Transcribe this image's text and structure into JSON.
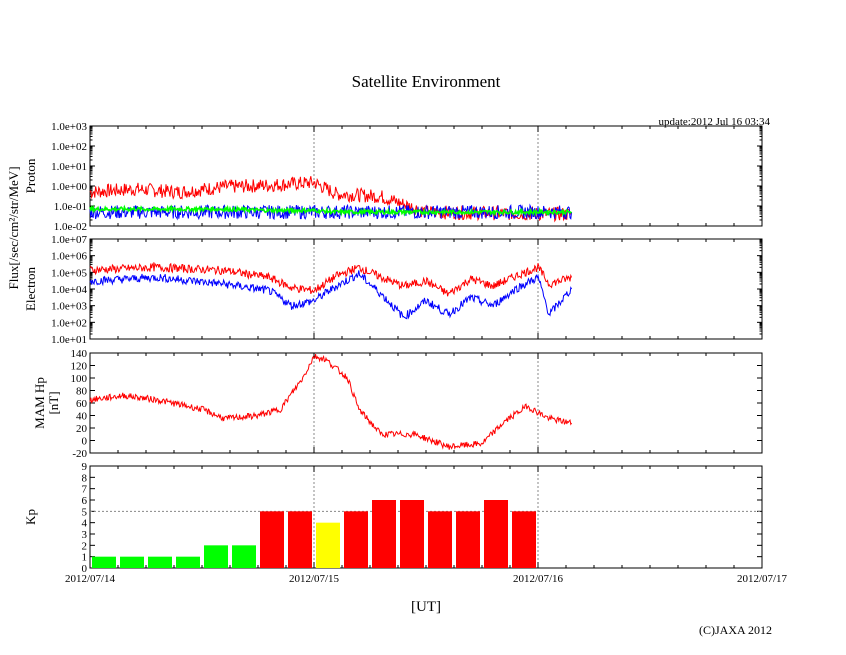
{
  "title": "Satellite Environment",
  "update": "update:2012 Jul 16 03:34",
  "copyright": "(C)JAXA 2012",
  "xlabel": "[UT]",
  "flux_label": "Flux[/sec/cm²/str/MeV]",
  "x_ticks": [
    "2012/07/14",
    "2012/07/15",
    "2012/07/16",
    "2012/07/17"
  ],
  "colors": {
    "red": "#ff0000",
    "blue": "#0000ff",
    "green": "#00ff00",
    "yellow": "#ffff00",
    "grid": "#888888"
  },
  "chart_data": [
    {
      "type": "line",
      "ylabel": "Proton",
      "yscale": "log",
      "ylim": [
        0.01,
        1000
      ],
      "y_ticks": [
        "1.0e-02",
        "1.0e-01",
        "1.0e+00",
        "1.0e+01",
        "1.0e+02",
        "1.0e+03"
      ],
      "x_days": [
        0,
        0.2,
        0.4,
        0.6,
        0.8,
        1.0,
        1.1,
        1.3,
        1.5,
        2.0,
        2.15
      ],
      "series": [
        {
          "color": "red",
          "values": [
            0.5,
            0.7,
            0.5,
            0.9,
            1.1,
            1.5,
            0.4,
            0.3,
            0.05,
            0.04,
            0.04
          ]
        },
        {
          "color": "blue",
          "values": [
            0.05,
            0.05,
            0.05,
            0.05,
            0.05,
            0.05,
            0.05,
            0.05,
            0.05,
            0.05,
            0.05
          ]
        },
        {
          "color": "green",
          "values": [
            0.07,
            0.07,
            0.07,
            0.07,
            0.06,
            0.06,
            0.05,
            0.05,
            0.05,
            0.05,
            0.05
          ]
        }
      ]
    },
    {
      "type": "line",
      "ylabel": "Electron",
      "yscale": "log",
      "ylim": [
        10,
        10000000
      ],
      "y_ticks": [
        "1.0e+01",
        "1.0e+02",
        "1.0e+03",
        "1.0e+04",
        "1.0e+05",
        "1.0e+06",
        "1.0e+07"
      ],
      "x_days": [
        0,
        0.3,
        0.6,
        0.8,
        0.9,
        1.0,
        1.1,
        1.2,
        1.3,
        1.4,
        1.5,
        1.6,
        1.7,
        1.8,
        1.9,
        2.0,
        2.05,
        2.15
      ],
      "series": [
        {
          "color": "red",
          "values": [
            140000,
            200000,
            130000,
            50000,
            12000,
            8000,
            60000,
            200000,
            50000,
            15000,
            30000,
            5000,
            40000,
            15000,
            60000,
            200000,
            20000,
            50000
          ]
        },
        {
          "color": "blue",
          "values": [
            30000,
            50000,
            20000,
            8000,
            1000,
            2000,
            15000,
            80000,
            5000,
            200,
            2000,
            300,
            3000,
            1000,
            10000,
            50000,
            300,
            10000
          ]
        }
      ]
    },
    {
      "type": "line",
      "ylabel": "MAM Hp",
      "ylabel2": "[nT]",
      "ylim": [
        -20,
        140
      ],
      "y_ticks": [
        "-20",
        "0",
        "20",
        "40",
        "60",
        "80",
        "100",
        "120",
        "140"
      ],
      "x_days": [
        0,
        0.15,
        0.3,
        0.5,
        0.6,
        0.75,
        0.85,
        0.95,
        1.0,
        1.05,
        1.15,
        1.2,
        1.3,
        1.45,
        1.6,
        1.75,
        1.85,
        1.95,
        2.05,
        2.15
      ],
      "series": [
        {
          "color": "red",
          "values": [
            65,
            72,
            65,
            50,
            35,
            40,
            50,
            100,
            135,
            130,
            100,
            50,
            10,
            10,
            -10,
            -5,
            30,
            55,
            35,
            28
          ]
        }
      ]
    },
    {
      "type": "bar",
      "ylabel": "Kp",
      "ylim": [
        0,
        9
      ],
      "y_ticks": [
        "0",
        "1",
        "2",
        "3",
        "4",
        "5",
        "6",
        "7",
        "8",
        "9"
      ],
      "bar_width_days": 0.125,
      "values": [
        1,
        1,
        1,
        1,
        2,
        2,
        5,
        5,
        4,
        5,
        6,
        6,
        5,
        5,
        6,
        5
      ],
      "colors": [
        "green",
        "green",
        "green",
        "green",
        "green",
        "green",
        "red",
        "red",
        "yellow",
        "red",
        "red",
        "red",
        "red",
        "red",
        "red",
        "red"
      ]
    }
  ]
}
